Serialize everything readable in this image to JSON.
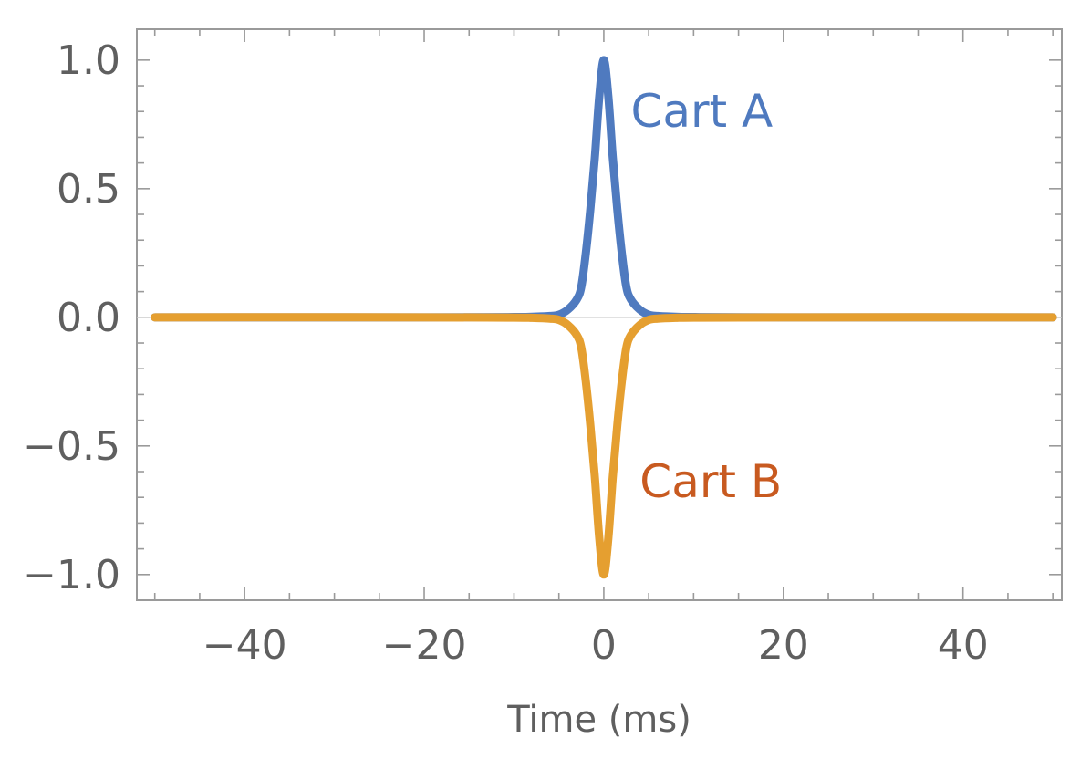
{
  "chart_data": {
    "type": "line",
    "title": "",
    "xlabel": "Time  (ms)",
    "ylabel": "",
    "xlim": [
      -52,
      51
    ],
    "ylim": [
      -1.1,
      1.12
    ],
    "x_ticks": [
      {
        "value": -40,
        "label": "−40"
      },
      {
        "value": -20,
        "label": "−20"
      },
      {
        "value": 0,
        "label": "0"
      },
      {
        "value": 20,
        "label": "20"
      },
      {
        "value": 40,
        "label": "40"
      }
    ],
    "y_ticks": [
      {
        "value": 1.0,
        "label": "1.0"
      },
      {
        "value": 0.5,
        "label": "0.5"
      },
      {
        "value": 0.0,
        "label": "0.0"
      },
      {
        "value": -0.5,
        "label": "−0.5"
      },
      {
        "value": -1.0,
        "label": "−1.0"
      }
    ],
    "x": [
      -50,
      -20,
      -10,
      -8,
      -6,
      -5,
      -4,
      -3,
      -2.5,
      -2,
      -1.5,
      -1,
      -0.5,
      0,
      0.5,
      1,
      1.5,
      2,
      2.5,
      3,
      4,
      5,
      6,
      8,
      10,
      20,
      50
    ],
    "series": [
      {
        "name": "Cart A",
        "color": "#4f7abf",
        "values": [
          0,
          0,
          0.001,
          0.002,
          0.005,
          0.01,
          0.03,
          0.07,
          0.12,
          0.25,
          0.42,
          0.62,
          0.86,
          1.0,
          0.86,
          0.62,
          0.42,
          0.25,
          0.12,
          0.07,
          0.03,
          0.01,
          0.005,
          0.002,
          0.001,
          0,
          0
        ]
      },
      {
        "name": "Cart B",
        "color": "#e59f30",
        "values": [
          0,
          0,
          -0.001,
          -0.002,
          -0.005,
          -0.01,
          -0.03,
          -0.07,
          -0.12,
          -0.25,
          -0.42,
          -0.62,
          -0.86,
          -1.0,
          -0.86,
          -0.62,
          -0.42,
          -0.25,
          -0.12,
          -0.07,
          -0.03,
          -0.01,
          -0.005,
          -0.002,
          -0.001,
          0,
          0
        ]
      }
    ],
    "annotations": [
      {
        "text": "Cart A",
        "x": 3,
        "y": 0.74,
        "color": "#4f7abf"
      },
      {
        "text": "Cart B",
        "x": 4,
        "y": -0.7,
        "color": "#c85a20"
      }
    ],
    "grid": false,
    "zero_line": true
  }
}
